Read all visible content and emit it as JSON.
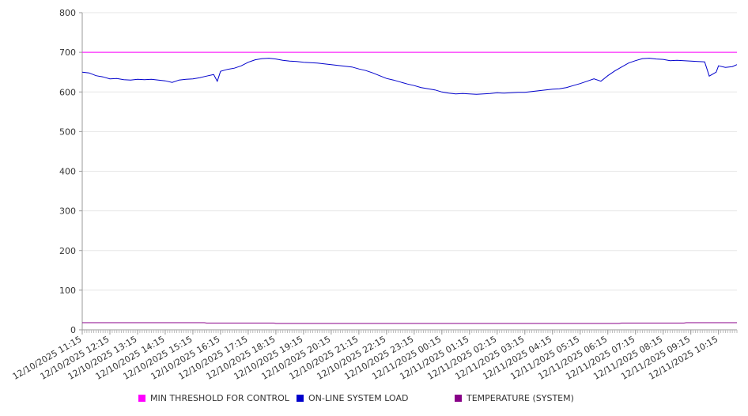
{
  "chart_data": {
    "type": "line",
    "title": "",
    "xlabel": "",
    "ylabel": "",
    "ylim": [
      0,
      800
    ],
    "y_ticks": [
      0,
      100,
      200,
      300,
      400,
      500,
      600,
      700,
      800
    ],
    "grid": "horizontal",
    "legend_position": "bottom",
    "x_tick_labels": [
      "12/10/2025 11:15",
      "12/10/2025 12:15",
      "12/10/2025 13:15",
      "12/10/2025 14:15",
      "12/10/2025 15:15",
      "12/10/2025 16:15",
      "12/10/2025 17:15",
      "12/10/2025 18:15",
      "12/10/2025 19:15",
      "12/10/2025 20:15",
      "12/10/2025 21:15",
      "12/10/2025 22:15",
      "12/10/2025 23:15",
      "12/11/2025 00:15",
      "12/11/2025 01:15",
      "12/11/2025 02:15",
      "12/11/2025 03:15",
      "12/11/2025 04:15",
      "12/11/2025 05:15",
      "12/11/2025 06:15",
      "12/11/2025 07:15",
      "12/11/2025 08:15",
      "12/11/2025 09:15",
      "12/11/2025 10:15"
    ],
    "x_start": "2025-12-10 11:15",
    "x_end": "2025-12-11 10:55",
    "series": [
      {
        "name": "MIN THRESHOLD FOR CONTROL",
        "color": "#ff00ff",
        "points": [
          [
            "2025-12-10 11:15",
            700
          ],
          [
            "2025-12-11 10:55",
            700
          ]
        ]
      },
      {
        "name": "ON-LINE SYSTEM LOAD",
        "color": "#0000cc",
        "points": [
          [
            "2025-12-10 11:15",
            650
          ],
          [
            "2025-12-10 11:30",
            648
          ],
          [
            "2025-12-10 11:45",
            641
          ],
          [
            "2025-12-10 12:00",
            638
          ],
          [
            "2025-12-10 12:15",
            633
          ],
          [
            "2025-12-10 12:30",
            634
          ],
          [
            "2025-12-10 12:45",
            631
          ],
          [
            "2025-12-10 13:00",
            630
          ],
          [
            "2025-12-10 13:15",
            632
          ],
          [
            "2025-12-10 13:30",
            631
          ],
          [
            "2025-12-10 13:45",
            632
          ],
          [
            "2025-12-10 14:00",
            630
          ],
          [
            "2025-12-10 14:15",
            628
          ],
          [
            "2025-12-10 14:30",
            624
          ],
          [
            "2025-12-10 14:45",
            630
          ],
          [
            "2025-12-10 15:00",
            632
          ],
          [
            "2025-12-10 15:15",
            633
          ],
          [
            "2025-12-10 15:30",
            636
          ],
          [
            "2025-12-10 15:45",
            640
          ],
          [
            "2025-12-10 16:00",
            644
          ],
          [
            "2025-12-10 16:08",
            627
          ],
          [
            "2025-12-10 16:15",
            652
          ],
          [
            "2025-12-10 16:30",
            657
          ],
          [
            "2025-12-10 16:45",
            660
          ],
          [
            "2025-12-10 17:00",
            666
          ],
          [
            "2025-12-10 17:15",
            675
          ],
          [
            "2025-12-10 17:30",
            681
          ],
          [
            "2025-12-10 17:45",
            684
          ],
          [
            "2025-12-10 18:00",
            685
          ],
          [
            "2025-12-10 18:15",
            683
          ],
          [
            "2025-12-10 18:30",
            680
          ],
          [
            "2025-12-10 18:45",
            678
          ],
          [
            "2025-12-10 19:00",
            677
          ],
          [
            "2025-12-10 19:15",
            675
          ],
          [
            "2025-12-10 19:30",
            674
          ],
          [
            "2025-12-10 19:45",
            673
          ],
          [
            "2025-12-10 20:00",
            671
          ],
          [
            "2025-12-10 20:15",
            669
          ],
          [
            "2025-12-10 20:30",
            667
          ],
          [
            "2025-12-10 20:45",
            665
          ],
          [
            "2025-12-10 21:00",
            663
          ],
          [
            "2025-12-10 21:15",
            658
          ],
          [
            "2025-12-10 21:30",
            654
          ],
          [
            "2025-12-10 21:45",
            648
          ],
          [
            "2025-12-10 22:00",
            641
          ],
          [
            "2025-12-10 22:15",
            634
          ],
          [
            "2025-12-10 22:30",
            630
          ],
          [
            "2025-12-10 22:45",
            625
          ],
          [
            "2025-12-10 23:00",
            620
          ],
          [
            "2025-12-10 23:15",
            616
          ],
          [
            "2025-12-10 23:30",
            611
          ],
          [
            "2025-12-10 23:45",
            608
          ],
          [
            "2025-12-11 00:00",
            605
          ],
          [
            "2025-12-11 00:15",
            600
          ],
          [
            "2025-12-11 00:30",
            597
          ],
          [
            "2025-12-11 00:45",
            595
          ],
          [
            "2025-12-11 01:00",
            596
          ],
          [
            "2025-12-11 01:15",
            595
          ],
          [
            "2025-12-11 01:30",
            594
          ],
          [
            "2025-12-11 01:45",
            595
          ],
          [
            "2025-12-11 02:00",
            596
          ],
          [
            "2025-12-11 02:15",
            598
          ],
          [
            "2025-12-11 02:30",
            597
          ],
          [
            "2025-12-11 02:45",
            598
          ],
          [
            "2025-12-11 03:00",
            599
          ],
          [
            "2025-12-11 03:15",
            599
          ],
          [
            "2025-12-11 03:30",
            601
          ],
          [
            "2025-12-11 03:45",
            603
          ],
          [
            "2025-12-11 04:00",
            605
          ],
          [
            "2025-12-11 04:15",
            607
          ],
          [
            "2025-12-11 04:30",
            608
          ],
          [
            "2025-12-11 04:45",
            611
          ],
          [
            "2025-12-11 05:00",
            616
          ],
          [
            "2025-12-11 05:15",
            621
          ],
          [
            "2025-12-11 05:30",
            627
          ],
          [
            "2025-12-11 05:45",
            633
          ],
          [
            "2025-12-11 06:00",
            627
          ],
          [
            "2025-12-11 06:15",
            641
          ],
          [
            "2025-12-11 06:30",
            653
          ],
          [
            "2025-12-11 06:45",
            663
          ],
          [
            "2025-12-11 07:00",
            673
          ],
          [
            "2025-12-11 07:15",
            679
          ],
          [
            "2025-12-11 07:30",
            684
          ],
          [
            "2025-12-11 07:45",
            685
          ],
          [
            "2025-12-11 08:00",
            683
          ],
          [
            "2025-12-11 08:15",
            682
          ],
          [
            "2025-12-11 08:30",
            679
          ],
          [
            "2025-12-11 08:45",
            680
          ],
          [
            "2025-12-11 09:00",
            679
          ],
          [
            "2025-12-11 09:15",
            678
          ],
          [
            "2025-12-11 09:30",
            677
          ],
          [
            "2025-12-11 09:45",
            676
          ],
          [
            "2025-12-11 09:55",
            640
          ],
          [
            "2025-12-11 10:10",
            650
          ],
          [
            "2025-12-11 10:15",
            666
          ],
          [
            "2025-12-11 10:30",
            662
          ],
          [
            "2025-12-11 10:45",
            664
          ],
          [
            "2025-12-11 10:55",
            669
          ]
        ]
      },
      {
        "name": "TEMPERATURE (SYSTEM)",
        "color": "#880088",
        "points": [
          [
            "2025-12-10 11:15",
            18
          ],
          [
            "2025-12-10 15:40",
            18
          ],
          [
            "2025-12-10 15:45",
            17
          ],
          [
            "2025-12-10 18:10",
            17
          ],
          [
            "2025-12-10 18:15",
            16
          ],
          [
            "2025-12-11 06:40",
            16
          ],
          [
            "2025-12-11 06:45",
            17
          ],
          [
            "2025-12-11 09:00",
            17
          ],
          [
            "2025-12-11 09:05",
            18
          ],
          [
            "2025-12-11 10:55",
            18
          ]
        ]
      }
    ]
  },
  "legend": {
    "items": [
      {
        "label": "MIN THRESHOLD FOR CONTROL",
        "color": "#ff00ff"
      },
      {
        "label": "ON-LINE SYSTEM LOAD",
        "color": "#0000cc"
      },
      {
        "label": "TEMPERATURE (SYSTEM)",
        "color": "#880088"
      }
    ]
  }
}
